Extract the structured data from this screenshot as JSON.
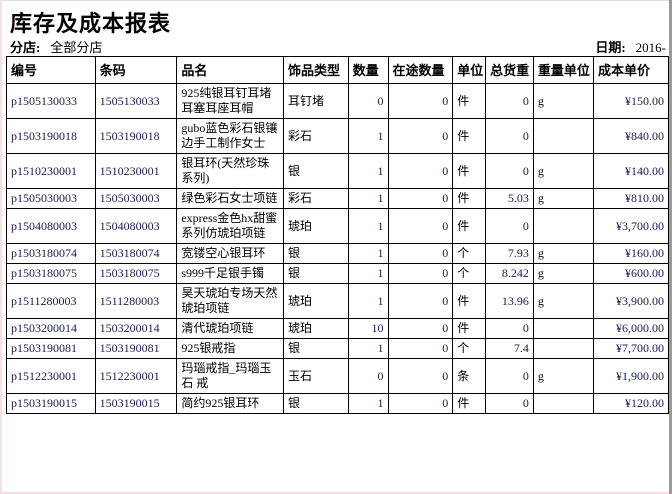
{
  "report": {
    "title": "库存及成本报表",
    "branch_label": "分店:",
    "branch_value": "全部分店",
    "date_label": "日期:",
    "date_value": "2016-"
  },
  "table": {
    "columns": [
      "编号",
      "条码",
      "品名",
      "饰品类型",
      "数量",
      "在途数量",
      "单位",
      "总货重",
      "重量单位",
      "成本单价"
    ],
    "rows": [
      [
        "p1505130033",
        "1505130033",
        "925纯银耳钉耳堵耳塞耳座耳帽",
        "耳钉堵",
        "0",
        "0",
        "件",
        "0",
        "g",
        "¥150.00"
      ],
      [
        "p1503190018",
        "1503190018",
        "gubo蓝色彩石银镶边手工制作女士",
        "彩石",
        "1",
        "0",
        "件",
        "0",
        "",
        "¥840.00"
      ],
      [
        "p1510230001",
        "1510230001",
        "银耳环(天然珍珠系列)",
        "银",
        "1",
        "0",
        "件",
        "0",
        "g",
        "¥140.00"
      ],
      [
        "p1505030003",
        "1505030003",
        "绿色彩石女士项链",
        "彩石",
        "1",
        "0",
        "件",
        "5.03",
        "g",
        "¥810.00"
      ],
      [
        "p1504080003",
        "1504080003",
        "express金色hx甜蜜系列仿琥珀项链",
        "琥珀",
        "1",
        "0",
        "件",
        "0",
        "",
        "¥3,700.00"
      ],
      [
        "p1503180074",
        "1503180074",
        "宽镂空心银耳环",
        "银",
        "1",
        "0",
        "个",
        "7.93",
        "g",
        "¥160.00"
      ],
      [
        "p1503180075",
        "1503180075",
        "s999千足银手镯",
        "银",
        "1",
        "0",
        "个",
        "8.242",
        "g",
        "¥600.00"
      ],
      [
        "p1511280003",
        "1511280003",
        "昊天琥珀专场天然 琥珀项链",
        "琥珀",
        "1",
        "0",
        "件",
        "13.96",
        "g",
        "¥3,900.00"
      ],
      [
        "p1503200014",
        "1503200014",
        "清代琥珀项链",
        "琥珀",
        "10",
        "0",
        "件",
        "0",
        "",
        "¥6,000.00"
      ],
      [
        "p1503190081",
        "1503190081",
        "925银戒指",
        "银",
        "1",
        "0",
        "个",
        "7.4",
        "",
        "¥7,700.00"
      ],
      [
        "p1512230001",
        "1512230001",
        "玛瑙戒指_玛瑙玉石 戒",
        "玉石",
        "0",
        "0",
        "条",
        "0",
        "g",
        "¥1,900.00"
      ],
      [
        "p1503190015",
        "1503190015",
        "简约925银耳环",
        "银",
        "1",
        "0",
        "件",
        "0",
        "",
        "¥120.00"
      ]
    ]
  },
  "colors": {
    "border": "#000000",
    "data_text": "#1b1b4d",
    "page_background": "#ffffff",
    "right_edge": "#9a9a9a"
  }
}
